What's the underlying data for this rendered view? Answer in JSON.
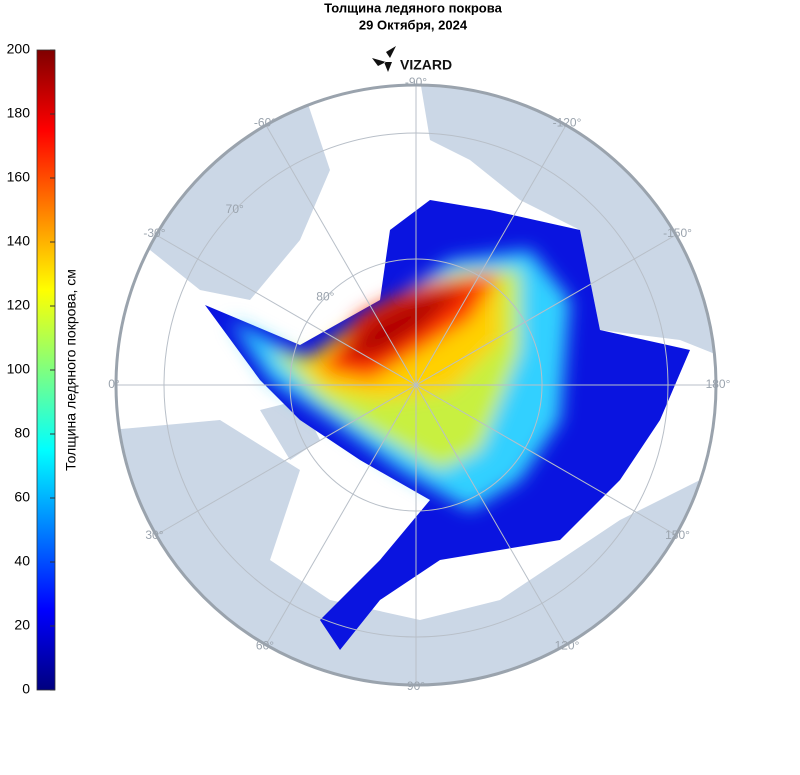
{
  "title": "Толщина ледяного покрова",
  "subtitle": "29 Октября, 2024",
  "logo": "VIZARD",
  "colorbar": {
    "label": "Толщина ледяного покрова, см",
    "lim": [
      0,
      200
    ],
    "ticks": [
      0,
      20,
      40,
      60,
      80,
      100,
      120,
      140,
      160,
      180,
      200
    ]
  },
  "longitude_labels": [
    {
      "value": -90,
      "label": "-90°"
    },
    {
      "value": -60,
      "label": "-60°"
    },
    {
      "value": -30,
      "label": "-30°"
    },
    {
      "value": 0,
      "label": "0°"
    },
    {
      "value": 30,
      "label": "30°"
    },
    {
      "value": 60,
      "label": "60°"
    },
    {
      "value": 90,
      "label": "90°"
    },
    {
      "value": 120,
      "label": "120°"
    },
    {
      "value": 150,
      "label": "150°"
    },
    {
      "value": 180,
      "label": "180°"
    },
    {
      "value": -150,
      "label": "-150°"
    },
    {
      "value": -120,
      "label": "-120°"
    }
  ],
  "latitude_labels": [
    {
      "value": 70,
      "label": "70°"
    },
    {
      "value": 80,
      "label": "80°"
    }
  ]
}
